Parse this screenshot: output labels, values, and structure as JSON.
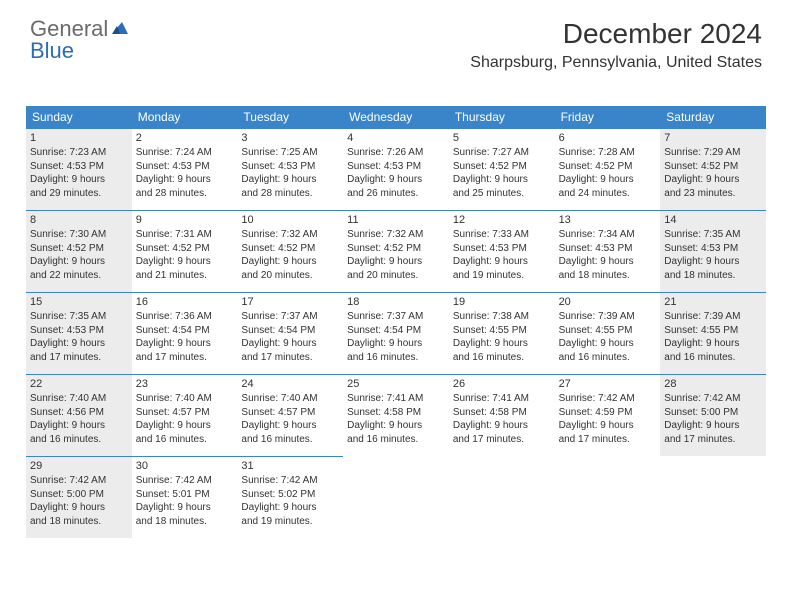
{
  "logo": {
    "text1": "General",
    "text2": "Blue",
    "colors": {
      "general": "#6b6b6b",
      "blue": "#2a6db8",
      "icon": "#2a6db8"
    }
  },
  "header": {
    "title": "December 2024",
    "location": "Sharpsburg, Pennsylvania, United States"
  },
  "style": {
    "header_bg": "#3a85c9",
    "header_text": "#ffffff",
    "shaded_bg": "#ececec",
    "cell_border": "#3a85c9",
    "title_fontsize": 28,
    "location_fontsize": 16,
    "dayheader_fontsize": 12,
    "daynum_fontsize": 11,
    "info_fontsize": 10
  },
  "columns": [
    "Sunday",
    "Monday",
    "Tuesday",
    "Wednesday",
    "Thursday",
    "Friday",
    "Saturday"
  ],
  "weeks": [
    [
      {
        "n": "1",
        "sunrise": "7:23 AM",
        "sunset": "4:53 PM",
        "dayh": "9",
        "daym": "29",
        "shaded": true
      },
      {
        "n": "2",
        "sunrise": "7:24 AM",
        "sunset": "4:53 PM",
        "dayh": "9",
        "daym": "28",
        "shaded": false
      },
      {
        "n": "3",
        "sunrise": "7:25 AM",
        "sunset": "4:53 PM",
        "dayh": "9",
        "daym": "28",
        "shaded": false
      },
      {
        "n": "4",
        "sunrise": "7:26 AM",
        "sunset": "4:53 PM",
        "dayh": "9",
        "daym": "26",
        "shaded": false
      },
      {
        "n": "5",
        "sunrise": "7:27 AM",
        "sunset": "4:52 PM",
        "dayh": "9",
        "daym": "25",
        "shaded": false
      },
      {
        "n": "6",
        "sunrise": "7:28 AM",
        "sunset": "4:52 PM",
        "dayh": "9",
        "daym": "24",
        "shaded": false
      },
      {
        "n": "7",
        "sunrise": "7:29 AM",
        "sunset": "4:52 PM",
        "dayh": "9",
        "daym": "23",
        "shaded": true
      }
    ],
    [
      {
        "n": "8",
        "sunrise": "7:30 AM",
        "sunset": "4:52 PM",
        "dayh": "9",
        "daym": "22",
        "shaded": true
      },
      {
        "n": "9",
        "sunrise": "7:31 AM",
        "sunset": "4:52 PM",
        "dayh": "9",
        "daym": "21",
        "shaded": false
      },
      {
        "n": "10",
        "sunrise": "7:32 AM",
        "sunset": "4:52 PM",
        "dayh": "9",
        "daym": "20",
        "shaded": false
      },
      {
        "n": "11",
        "sunrise": "7:32 AM",
        "sunset": "4:52 PM",
        "dayh": "9",
        "daym": "20",
        "shaded": false
      },
      {
        "n": "12",
        "sunrise": "7:33 AM",
        "sunset": "4:53 PM",
        "dayh": "9",
        "daym": "19",
        "shaded": false
      },
      {
        "n": "13",
        "sunrise": "7:34 AM",
        "sunset": "4:53 PM",
        "dayh": "9",
        "daym": "18",
        "shaded": false
      },
      {
        "n": "14",
        "sunrise": "7:35 AM",
        "sunset": "4:53 PM",
        "dayh": "9",
        "daym": "18",
        "shaded": true
      }
    ],
    [
      {
        "n": "15",
        "sunrise": "7:35 AM",
        "sunset": "4:53 PM",
        "dayh": "9",
        "daym": "17",
        "shaded": true
      },
      {
        "n": "16",
        "sunrise": "7:36 AM",
        "sunset": "4:54 PM",
        "dayh": "9",
        "daym": "17",
        "shaded": false
      },
      {
        "n": "17",
        "sunrise": "7:37 AM",
        "sunset": "4:54 PM",
        "dayh": "9",
        "daym": "17",
        "shaded": false
      },
      {
        "n": "18",
        "sunrise": "7:37 AM",
        "sunset": "4:54 PM",
        "dayh": "9",
        "daym": "16",
        "shaded": false
      },
      {
        "n": "19",
        "sunrise": "7:38 AM",
        "sunset": "4:55 PM",
        "dayh": "9",
        "daym": "16",
        "shaded": false
      },
      {
        "n": "20",
        "sunrise": "7:39 AM",
        "sunset": "4:55 PM",
        "dayh": "9",
        "daym": "16",
        "shaded": false
      },
      {
        "n": "21",
        "sunrise": "7:39 AM",
        "sunset": "4:55 PM",
        "dayh": "9",
        "daym": "16",
        "shaded": true
      }
    ],
    [
      {
        "n": "22",
        "sunrise": "7:40 AM",
        "sunset": "4:56 PM",
        "dayh": "9",
        "daym": "16",
        "shaded": true
      },
      {
        "n": "23",
        "sunrise": "7:40 AM",
        "sunset": "4:57 PM",
        "dayh": "9",
        "daym": "16",
        "shaded": false
      },
      {
        "n": "24",
        "sunrise": "7:40 AM",
        "sunset": "4:57 PM",
        "dayh": "9",
        "daym": "16",
        "shaded": false
      },
      {
        "n": "25",
        "sunrise": "7:41 AM",
        "sunset": "4:58 PM",
        "dayh": "9",
        "daym": "16",
        "shaded": false
      },
      {
        "n": "26",
        "sunrise": "7:41 AM",
        "sunset": "4:58 PM",
        "dayh": "9",
        "daym": "17",
        "shaded": false
      },
      {
        "n": "27",
        "sunrise": "7:42 AM",
        "sunset": "4:59 PM",
        "dayh": "9",
        "daym": "17",
        "shaded": false
      },
      {
        "n": "28",
        "sunrise": "7:42 AM",
        "sunset": "5:00 PM",
        "dayh": "9",
        "daym": "17",
        "shaded": true
      }
    ],
    [
      {
        "n": "29",
        "sunrise": "7:42 AM",
        "sunset": "5:00 PM",
        "dayh": "9",
        "daym": "18",
        "shaded": true
      },
      {
        "n": "30",
        "sunrise": "7:42 AM",
        "sunset": "5:01 PM",
        "dayh": "9",
        "daym": "18",
        "shaded": false
      },
      {
        "n": "31",
        "sunrise": "7:42 AM",
        "sunset": "5:02 PM",
        "dayh": "9",
        "daym": "19",
        "shaded": false
      },
      null,
      null,
      null,
      null
    ]
  ],
  "labels": {
    "sunrise": "Sunrise:",
    "sunset": "Sunset:",
    "daylight": "Daylight:",
    "hours": "hours",
    "and": "and",
    "minutes": "minutes."
  }
}
